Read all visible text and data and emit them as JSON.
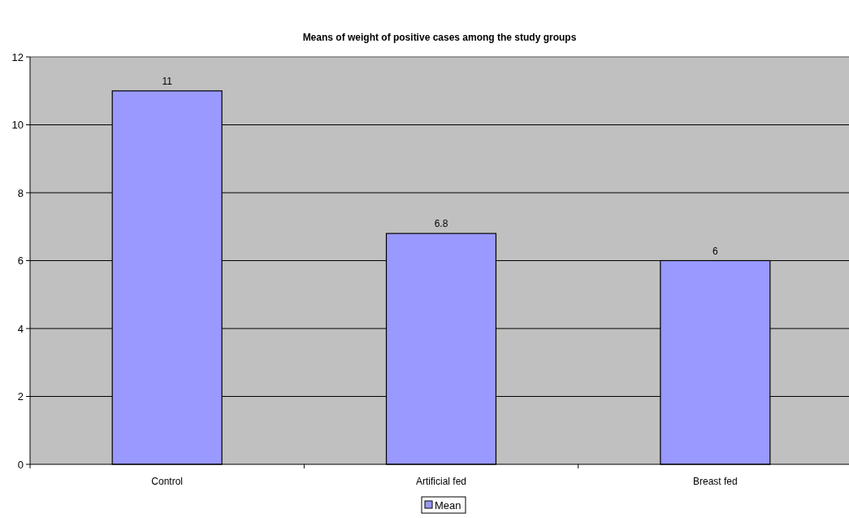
{
  "chart_data": {
    "type": "bar",
    "title": "Means of weight of positive cases among the study groups",
    "categories": [
      "Control",
      "Artificial fed",
      "Breast fed"
    ],
    "series": [
      {
        "name": "Mean",
        "color": "#9999ff",
        "values": [
          11,
          6.8,
          6
        ]
      }
    ],
    "ylim": [
      0,
      12
    ],
    "yticks": [
      0,
      2,
      4,
      6,
      8,
      10,
      12
    ],
    "grid": "y",
    "legend": "bottom",
    "data_labels": true
  }
}
